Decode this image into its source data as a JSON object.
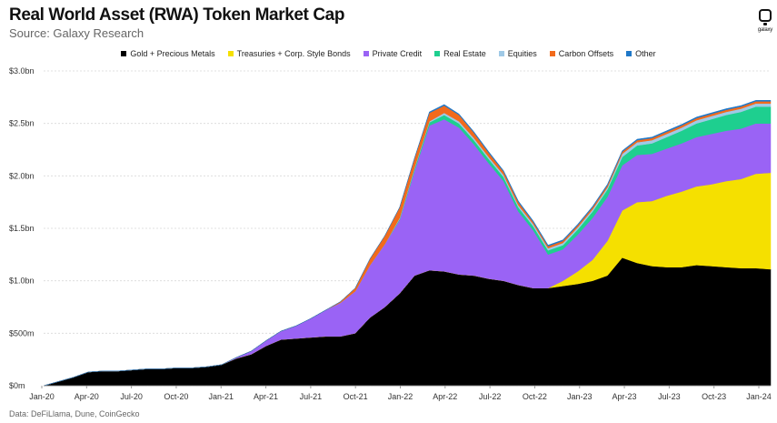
{
  "header": {
    "title": "Real World Asset (RWA) Token Market Cap",
    "subtitle": "Source: Galaxy Research",
    "logo_text": "galaxy"
  },
  "footer": {
    "note": "Data: DeFiLlama, Dune, CoinGecko"
  },
  "chart_data": {
    "type": "area",
    "stacked": true,
    "ylim": [
      0,
      3.0
    ],
    "y_unit": "bn USD",
    "yticks": [
      {
        "value": 0,
        "label": "$0m"
      },
      {
        "value": 0.5,
        "label": "$500m"
      },
      {
        "value": 1.0,
        "label": "$1.0bn"
      },
      {
        "value": 1.5,
        "label": "$1.5bn"
      },
      {
        "value": 2.0,
        "label": "$2.0bn"
      },
      {
        "value": 2.5,
        "label": "$2.5bn"
      },
      {
        "value": 3.0,
        "label": "$3.0bn"
      }
    ],
    "xticks": [
      "Jan-20",
      "Apr-20",
      "Jul-20",
      "Oct-20",
      "Jan-21",
      "Apr-21",
      "Jul-21",
      "Oct-21",
      "Jan-22",
      "Apr-22",
      "Jul-22",
      "Oct-22",
      "Jan-23",
      "Apr-23",
      "Jul-23",
      "Oct-23",
      "Jan-24"
    ],
    "grid": true,
    "legend_position": "top-center",
    "x": [
      "2020-01",
      "2020-02",
      "2020-03",
      "2020-04",
      "2020-05",
      "2020-06",
      "2020-07",
      "2020-08",
      "2020-09",
      "2020-10",
      "2020-11",
      "2020-12",
      "2021-01",
      "2021-02",
      "2021-03",
      "2021-04",
      "2021-05",
      "2021-06",
      "2021-07",
      "2021-08",
      "2021-09",
      "2021-10",
      "2021-11",
      "2021-12",
      "2022-01",
      "2022-02",
      "2022-03",
      "2022-04",
      "2022-05",
      "2022-06",
      "2022-07",
      "2022-08",
      "2022-09",
      "2022-10",
      "2022-11",
      "2022-12",
      "2023-01",
      "2023-02",
      "2023-03",
      "2023-04",
      "2023-05",
      "2023-06",
      "2023-07",
      "2023-08",
      "2023-09",
      "2023-10",
      "2023-11",
      "2023-12",
      "2024-01",
      "2024-02"
    ],
    "series": [
      {
        "name": "Gold + Precious Metals",
        "color": "#000000",
        "values": [
          0.0,
          0.04,
          0.08,
          0.13,
          0.14,
          0.14,
          0.15,
          0.16,
          0.16,
          0.17,
          0.17,
          0.18,
          0.2,
          0.26,
          0.3,
          0.38,
          0.44,
          0.45,
          0.46,
          0.47,
          0.47,
          0.5,
          0.65,
          0.75,
          0.88,
          1.05,
          1.1,
          1.09,
          1.06,
          1.05,
          1.02,
          1.0,
          0.96,
          0.93,
          0.93,
          0.95,
          0.97,
          1.0,
          1.05,
          1.22,
          1.17,
          1.14,
          1.13,
          1.13,
          1.15,
          1.14,
          1.13,
          1.12,
          1.12,
          1.11
        ]
      },
      {
        "name": "Treasuries + Corp. Style Bonds",
        "color": "#f5e000",
        "values": [
          0,
          0,
          0,
          0,
          0,
          0,
          0,
          0,
          0,
          0,
          0,
          0,
          0,
          0,
          0,
          0,
          0,
          0,
          0,
          0,
          0,
          0,
          0,
          0,
          0,
          0,
          0,
          0,
          0,
          0,
          0,
          0,
          0,
          0,
          0,
          0.05,
          0.12,
          0.2,
          0.33,
          0.45,
          0.58,
          0.62,
          0.68,
          0.72,
          0.75,
          0.78,
          0.82,
          0.85,
          0.9,
          0.92
        ]
      },
      {
        "name": "Private Credit",
        "color": "#9a63f5",
        "values": [
          0,
          0,
          0,
          0,
          0,
          0,
          0,
          0,
          0,
          0,
          0,
          0,
          0,
          0.01,
          0.03,
          0.05,
          0.08,
          0.12,
          0.18,
          0.25,
          0.32,
          0.4,
          0.5,
          0.6,
          0.7,
          1.0,
          1.38,
          1.45,
          1.4,
          1.25,
          1.1,
          0.95,
          0.7,
          0.55,
          0.32,
          0.3,
          0.35,
          0.4,
          0.42,
          0.43,
          0.45,
          0.45,
          0.45,
          0.46,
          0.47,
          0.48,
          0.48,
          0.48,
          0.48,
          0.47
        ]
      },
      {
        "name": "Real Estate",
        "color": "#1ecf8f",
        "values": [
          0,
          0,
          0,
          0,
          0,
          0,
          0,
          0,
          0,
          0,
          0,
          0,
          0,
          0,
          0,
          0,
          0,
          0,
          0,
          0,
          0,
          0,
          0,
          0,
          0.01,
          0.02,
          0.03,
          0.04,
          0.04,
          0.04,
          0.04,
          0.04,
          0.04,
          0.04,
          0.04,
          0.04,
          0.05,
          0.06,
          0.07,
          0.08,
          0.09,
          0.1,
          0.11,
          0.12,
          0.13,
          0.14,
          0.15,
          0.16,
          0.16,
          0.16
        ]
      },
      {
        "name": "Equities",
        "color": "#9fc9e6",
        "values": [
          0,
          0,
          0,
          0,
          0,
          0,
          0,
          0,
          0,
          0,
          0,
          0,
          0,
          0,
          0,
          0,
          0,
          0,
          0,
          0,
          0,
          0,
          0,
          0,
          0.01,
          0.01,
          0.01,
          0.02,
          0.02,
          0.02,
          0.02,
          0.02,
          0.02,
          0.02,
          0.02,
          0.02,
          0.02,
          0.02,
          0.02,
          0.03,
          0.03,
          0.03,
          0.03,
          0.03,
          0.03,
          0.03,
          0.03,
          0.03,
          0.03,
          0.03
        ]
      },
      {
        "name": "Carbon Offsets",
        "color": "#f26a1b",
        "values": [
          0,
          0,
          0,
          0,
          0,
          0,
          0,
          0,
          0,
          0,
          0,
          0,
          0,
          0,
          0,
          0,
          0,
          0,
          0,
          0,
          0.01,
          0.03,
          0.06,
          0.08,
          0.1,
          0.09,
          0.08,
          0.07,
          0.06,
          0.05,
          0.04,
          0.03,
          0.03,
          0.02,
          0.02,
          0.02,
          0.02,
          0.02,
          0.02,
          0.02,
          0.02,
          0.02,
          0.02,
          0.02,
          0.02,
          0.02,
          0.02,
          0.02,
          0.02,
          0.02
        ]
      },
      {
        "name": "Other",
        "color": "#1f78c8",
        "values": [
          0,
          0,
          0,
          0,
          0,
          0,
          0,
          0,
          0,
          0,
          0,
          0,
          0,
          0,
          0,
          0,
          0,
          0,
          0,
          0,
          0,
          0,
          0,
          0,
          0.0,
          0.0,
          0.01,
          0.01,
          0.01,
          0.01,
          0.01,
          0.01,
          0.01,
          0.01,
          0.01,
          0.01,
          0.01,
          0.01,
          0.01,
          0.01,
          0.01,
          0.01,
          0.01,
          0.01,
          0.01,
          0.01,
          0.01,
          0.01,
          0.01,
          0.01
        ]
      }
    ]
  }
}
